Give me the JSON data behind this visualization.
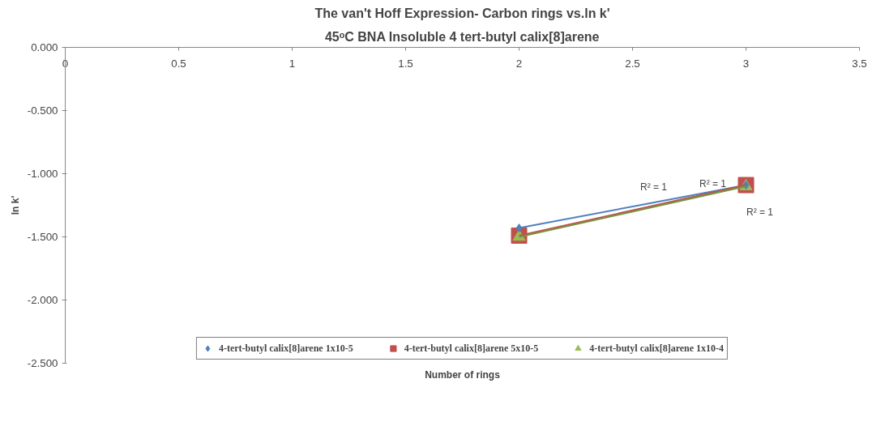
{
  "chart_data": {
    "type": "scatter",
    "title": "The van't Hoff Expression- Carbon rings vs.ln k'",
    "subtitle": "45ᵒC BNA Insoluble 4 tert-butyl calix[8]arene",
    "xlabel": "Number of rings",
    "ylabel": "ln k'",
    "x": [
      2,
      3
    ],
    "series": [
      {
        "name": "4-tert-butyl calix[8]arene 1x10-5",
        "color": "#4f81bd",
        "marker": "diamond",
        "values": [
          -1.43,
          -1.09
        ]
      },
      {
        "name": "4-tert-butyl calix[8]arene 5x10-5",
        "color": "#c0504d",
        "marker": "square",
        "values": [
          -1.49,
          -1.09
        ]
      },
      {
        "name": "4-tert-butyl calix[8]arene 1x10-4",
        "color": "#9bbb59",
        "marker": "triangle",
        "values": [
          -1.5,
          -1.1
        ]
      },
      {
        "type": "line",
        "color": "#4f81bd",
        "values": [
          -1.43,
          -1.09
        ]
      },
      {
        "type": "line",
        "color": "#c0504d",
        "values": [
          -1.49,
          -1.09
        ]
      },
      {
        "type": "line",
        "color": "#77933c",
        "values": [
          -1.5,
          -1.1
        ]
      }
    ],
    "annotations": [
      "R² = 1",
      "R² = 1",
      "R² = 1"
    ],
    "xlim": [
      0,
      3.5
    ],
    "xticks": [
      0,
      0.5,
      1,
      1.5,
      2,
      2.5,
      3,
      3.5
    ],
    "ylim": [
      -2.5,
      0
    ],
    "yticks": [
      {
        "value": -2.5,
        "label": "-2.500"
      },
      {
        "value": -2,
        "label": "-2.000"
      },
      {
        "value": -1.5,
        "label": "-1.500"
      },
      {
        "value": -1,
        "label": "-1.000"
      },
      {
        "value": -0.5,
        "label": "-0.500"
      },
      {
        "value": 0,
        "label": "0.000"
      }
    ],
    "grid": false,
    "legend": "bottom"
  }
}
